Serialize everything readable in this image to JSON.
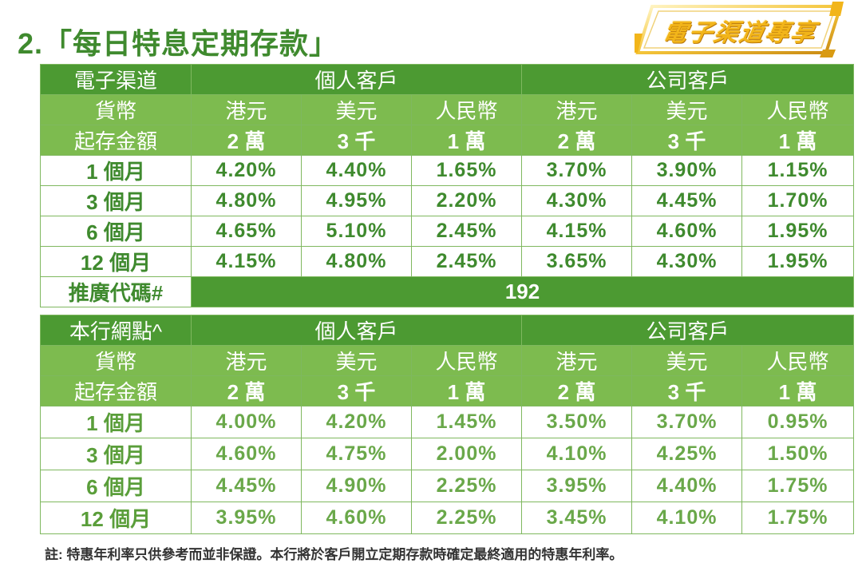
{
  "title": "2.「每日特息定期存款」",
  "badge": {
    "label": "電子渠道專享"
  },
  "online_table": {
    "channel_label": "電子渠道",
    "groups": [
      "個人客戶",
      "公司客戶"
    ],
    "currency_label": "貨幣",
    "currencies": [
      "港元",
      "美元",
      "人民幣",
      "港元",
      "美元",
      "人民幣"
    ],
    "min_label": "起存金額",
    "min_amounts": [
      "2 萬",
      "3 千",
      "1 萬",
      "2 萬",
      "3 千",
      "1 萬"
    ],
    "rows": [
      {
        "term": "1 個月",
        "rates": [
          "4.20%",
          "4.40%",
          "1.65%",
          "3.70%",
          "3.90%",
          "1.15%"
        ]
      },
      {
        "term": "3 個月",
        "rates": [
          "4.80%",
          "4.95%",
          "2.20%",
          "4.30%",
          "4.45%",
          "1.70%"
        ]
      },
      {
        "term": "6 個月",
        "rates": [
          "4.65%",
          "5.10%",
          "2.45%",
          "4.15%",
          "4.60%",
          "1.95%"
        ]
      },
      {
        "term": "12 個月",
        "rates": [
          "4.15%",
          "4.80%",
          "2.45%",
          "3.65%",
          "4.30%",
          "1.95%"
        ]
      }
    ],
    "promo_label": "推廣代碼#",
    "promo_code": "192"
  },
  "branch_table": {
    "channel_label": "本行網點^",
    "groups": [
      "個人客戶",
      "公司客戶"
    ],
    "currency_label": "貨幣",
    "currencies": [
      "港元",
      "美元",
      "人民幣",
      "港元",
      "美元",
      "人民幣"
    ],
    "min_label": "起存金額",
    "min_amounts": [
      "2 萬",
      "3 千",
      "1 萬",
      "2 萬",
      "3 千",
      "1 萬"
    ],
    "rows": [
      {
        "term": "1 個月",
        "rates": [
          "4.00%",
          "4.20%",
          "1.45%",
          "3.50%",
          "3.70%",
          "0.95%"
        ]
      },
      {
        "term": "3 個月",
        "rates": [
          "4.60%",
          "4.75%",
          "2.00%",
          "4.10%",
          "4.25%",
          "1.50%"
        ]
      },
      {
        "term": "6 個月",
        "rates": [
          "4.45%",
          "4.90%",
          "2.25%",
          "3.95%",
          "4.40%",
          "1.75%"
        ]
      },
      {
        "term": "12 個月",
        "rates": [
          "3.95%",
          "4.60%",
          "2.25%",
          "3.45%",
          "4.10%",
          "1.75%"
        ]
      }
    ]
  },
  "footnote": "註: 特惠年利率只供參考而並非保證。本行將於客戶開立定期存款時確定最終適用的特惠年利率。"
}
